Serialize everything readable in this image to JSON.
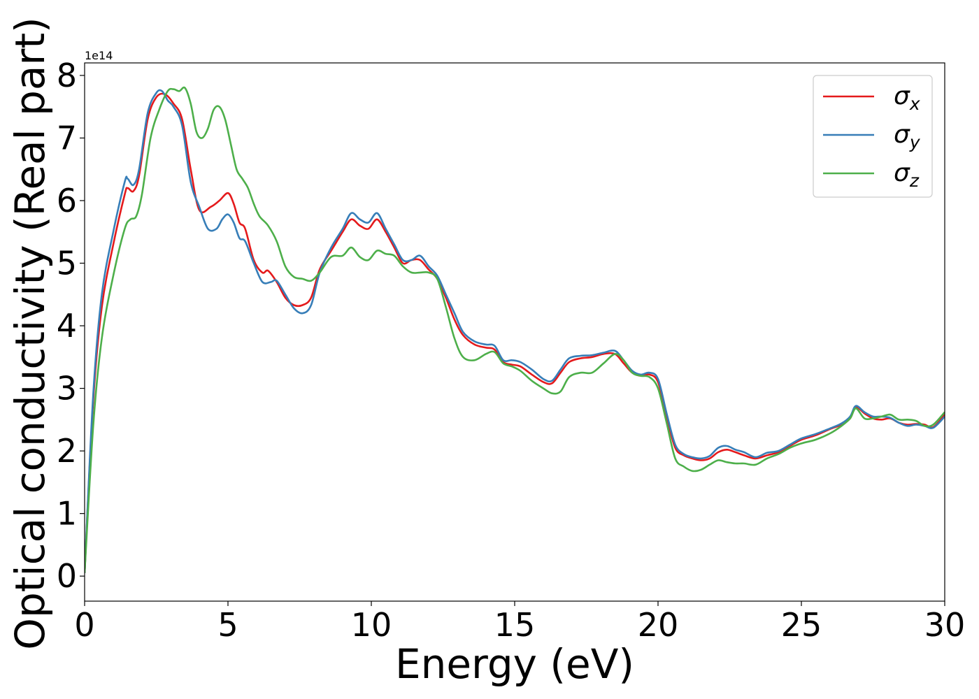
{
  "chart_data": {
    "type": "line",
    "title": "",
    "xlabel": "Energy (eV)",
    "ylabel": "Optical conductivity (Real part)",
    "offset_text": "1e14",
    "xlim": [
      0,
      30
    ],
    "ylim": [
      -0.4,
      8.2
    ],
    "xticks": [
      0,
      5,
      10,
      15,
      20,
      25,
      30
    ],
    "yticks": [
      0,
      1,
      2,
      3,
      4,
      5,
      6,
      7,
      8
    ],
    "grid": false,
    "legend": "top-right",
    "series": [
      {
        "name": "σx",
        "name_base": "σ",
        "name_sub": "x",
        "color": "#e41a1c",
        "x": [
          0,
          0.3,
          0.6,
          1.0,
          1.4,
          1.5,
          1.7,
          1.9,
          2.2,
          2.5,
          2.8,
          3.1,
          3.4,
          3.7,
          4.0,
          4.4,
          4.7,
          5.0,
          5.2,
          5.4,
          5.6,
          5.9,
          6.2,
          6.4,
          6.7,
          7.0,
          7.3,
          7.6,
          7.9,
          8.2,
          8.6,
          9.0,
          9.3,
          9.6,
          9.9,
          10.2,
          10.5,
          10.8,
          11.1,
          11.4,
          11.7,
          12.0,
          12.3,
          12.6,
          12.9,
          13.2,
          13.6,
          14.0,
          14.3,
          14.6,
          14.9,
          15.2,
          15.6,
          16.0,
          16.3,
          16.6,
          16.9,
          17.3,
          17.7,
          18.1,
          18.5,
          18.8,
          19.1,
          19.4,
          19.7,
          20.0,
          20.3,
          20.6,
          20.9,
          21.2,
          21.5,
          21.8,
          22.1,
          22.4,
          22.7,
          23.0,
          23.4,
          23.8,
          24.2,
          24.6,
          25.0,
          25.5,
          26.0,
          26.4,
          26.7,
          26.9,
          27.2,
          27.5,
          27.8,
          28.1,
          28.4,
          28.7,
          29.0,
          29.3,
          29.6,
          30
        ],
        "y": [
          0.05,
          2.8,
          4.3,
          5.3,
          6.1,
          6.2,
          6.15,
          6.4,
          7.3,
          7.65,
          7.7,
          7.55,
          7.3,
          6.5,
          5.85,
          5.9,
          6.0,
          6.12,
          5.95,
          5.65,
          5.55,
          5.05,
          4.85,
          4.88,
          4.7,
          4.45,
          4.33,
          4.33,
          4.45,
          4.9,
          5.2,
          5.5,
          5.7,
          5.6,
          5.55,
          5.7,
          5.5,
          5.25,
          5.0,
          5.05,
          5.05,
          4.9,
          4.75,
          4.45,
          4.1,
          3.85,
          3.7,
          3.65,
          3.62,
          3.42,
          3.38,
          3.35,
          3.22,
          3.1,
          3.08,
          3.25,
          3.42,
          3.48,
          3.5,
          3.55,
          3.55,
          3.4,
          3.25,
          3.2,
          3.22,
          3.1,
          2.55,
          2.05,
          1.93,
          1.88,
          1.85,
          1.88,
          1.98,
          2.02,
          1.98,
          1.93,
          1.88,
          1.93,
          1.98,
          2.08,
          2.18,
          2.25,
          2.35,
          2.42,
          2.52,
          2.7,
          2.6,
          2.52,
          2.5,
          2.52,
          2.45,
          2.42,
          2.43,
          2.42,
          2.38,
          2.58
        ]
      },
      {
        "name": "σy",
        "name_base": "σ",
        "name_sub": "y",
        "color": "#377eb8",
        "x": [
          0,
          0.3,
          0.6,
          1.0,
          1.4,
          1.5,
          1.7,
          1.9,
          2.2,
          2.5,
          2.7,
          2.9,
          3.1,
          3.4,
          3.7,
          4.0,
          4.3,
          4.6,
          4.8,
          5.0,
          5.2,
          5.4,
          5.6,
          5.9,
          6.2,
          6.5,
          6.7,
          7.0,
          7.3,
          7.6,
          7.9,
          8.2,
          8.6,
          9.0,
          9.3,
          9.6,
          9.9,
          10.2,
          10.5,
          10.8,
          11.1,
          11.4,
          11.7,
          12.0,
          12.3,
          12.6,
          12.9,
          13.2,
          13.6,
          14.0,
          14.3,
          14.6,
          14.9,
          15.2,
          15.6,
          16.0,
          16.3,
          16.6,
          16.9,
          17.3,
          17.7,
          18.1,
          18.5,
          18.8,
          19.1,
          19.4,
          19.7,
          20.0,
          20.3,
          20.6,
          20.9,
          21.2,
          21.5,
          21.8,
          22.1,
          22.4,
          22.7,
          23.0,
          23.4,
          23.8,
          24.2,
          24.6,
          25.0,
          25.5,
          26.0,
          26.4,
          26.7,
          26.9,
          27.2,
          27.5,
          27.8,
          28.1,
          28.4,
          28.7,
          29.0,
          29.3,
          29.6,
          30
        ],
        "y": [
          0.05,
          2.9,
          4.5,
          5.5,
          6.3,
          6.35,
          6.25,
          6.5,
          7.4,
          7.72,
          7.75,
          7.6,
          7.5,
          7.2,
          6.3,
          5.9,
          5.55,
          5.55,
          5.7,
          5.78,
          5.65,
          5.4,
          5.35,
          5.0,
          4.7,
          4.7,
          4.72,
          4.5,
          4.28,
          4.2,
          4.33,
          4.85,
          5.25,
          5.55,
          5.8,
          5.7,
          5.65,
          5.8,
          5.55,
          5.3,
          5.05,
          5.05,
          5.12,
          4.95,
          4.8,
          4.5,
          4.2,
          3.9,
          3.75,
          3.7,
          3.68,
          3.45,
          3.45,
          3.42,
          3.3,
          3.15,
          3.12,
          3.3,
          3.48,
          3.52,
          3.53,
          3.57,
          3.6,
          3.45,
          3.28,
          3.22,
          3.25,
          3.15,
          2.6,
          2.1,
          1.95,
          1.9,
          1.88,
          1.92,
          2.05,
          2.08,
          2.02,
          1.98,
          1.9,
          1.97,
          2.0,
          2.1,
          2.2,
          2.27,
          2.36,
          2.44,
          2.55,
          2.72,
          2.62,
          2.55,
          2.55,
          2.53,
          2.45,
          2.4,
          2.42,
          2.4,
          2.37,
          2.55
        ]
      },
      {
        "name": "σz",
        "name_base": "σ",
        "name_sub": "z",
        "color": "#4daf4a",
        "x": [
          0,
          0.3,
          0.6,
          1.0,
          1.4,
          1.6,
          1.8,
          2.0,
          2.3,
          2.6,
          2.9,
          3.1,
          3.3,
          3.5,
          3.7,
          3.9,
          4.1,
          4.3,
          4.5,
          4.7,
          4.9,
          5.1,
          5.3,
          5.5,
          5.7,
          5.9,
          6.1,
          6.4,
          6.7,
          7.0,
          7.3,
          7.6,
          7.9,
          8.2,
          8.6,
          9.0,
          9.3,
          9.6,
          9.9,
          10.2,
          10.5,
          10.8,
          11.1,
          11.4,
          11.7,
          12.0,
          12.3,
          12.6,
          12.9,
          13.2,
          13.6,
          14.0,
          14.3,
          14.6,
          14.9,
          15.2,
          15.6,
          16.0,
          16.3,
          16.6,
          16.9,
          17.3,
          17.7,
          18.1,
          18.5,
          18.8,
          19.1,
          19.4,
          19.7,
          20.0,
          20.3,
          20.6,
          20.9,
          21.2,
          21.5,
          21.8,
          22.1,
          22.4,
          22.7,
          23.0,
          23.4,
          23.8,
          24.2,
          24.6,
          25.0,
          25.5,
          26.0,
          26.4,
          26.7,
          26.9,
          27.2,
          27.5,
          27.8,
          28.1,
          28.4,
          28.7,
          29.0,
          29.3,
          29.6,
          30
        ],
        "y": [
          0.05,
          2.4,
          3.8,
          4.8,
          5.55,
          5.7,
          5.75,
          6.1,
          7.0,
          7.45,
          7.75,
          7.78,
          7.75,
          7.8,
          7.55,
          7.1,
          7.0,
          7.15,
          7.45,
          7.5,
          7.3,
          6.9,
          6.5,
          6.35,
          6.2,
          5.95,
          5.75,
          5.6,
          5.35,
          4.95,
          4.78,
          4.75,
          4.72,
          4.85,
          5.1,
          5.12,
          5.25,
          5.1,
          5.05,
          5.2,
          5.15,
          5.12,
          4.95,
          4.85,
          4.85,
          4.85,
          4.75,
          4.3,
          3.8,
          3.5,
          3.45,
          3.55,
          3.58,
          3.4,
          3.35,
          3.28,
          3.12,
          3.0,
          2.92,
          2.95,
          3.18,
          3.25,
          3.25,
          3.4,
          3.55,
          3.45,
          3.25,
          3.2,
          3.18,
          3.0,
          2.45,
          1.88,
          1.75,
          1.68,
          1.7,
          1.78,
          1.85,
          1.82,
          1.8,
          1.8,
          1.78,
          1.88,
          1.95,
          2.05,
          2.12,
          2.18,
          2.28,
          2.4,
          2.52,
          2.68,
          2.52,
          2.52,
          2.55,
          2.58,
          2.5,
          2.5,
          2.48,
          2.4,
          2.42,
          2.62
        ]
      }
    ]
  }
}
